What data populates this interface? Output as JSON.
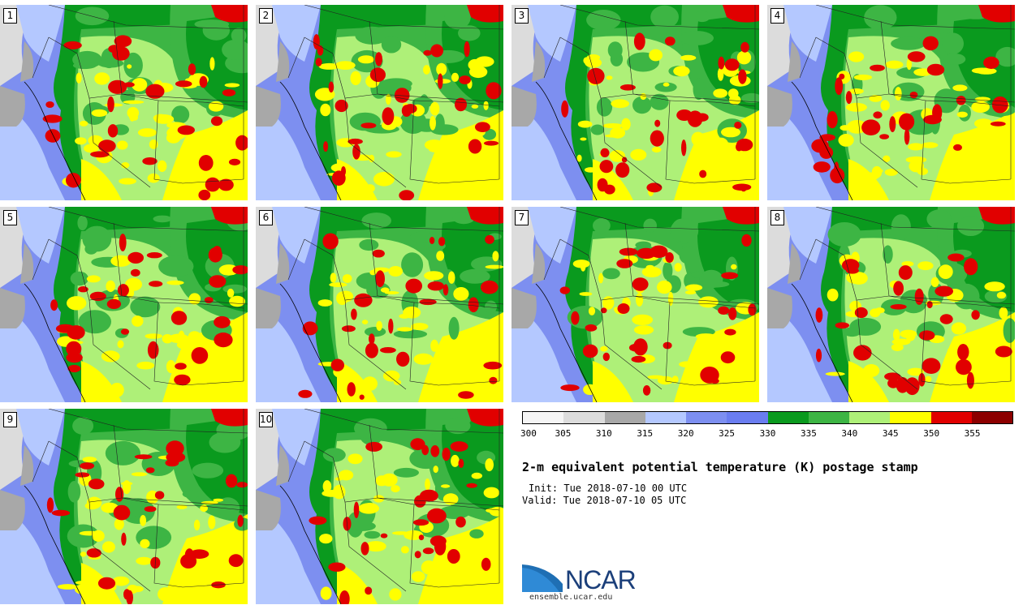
{
  "panels": [
    {
      "label": "1"
    },
    {
      "label": "2"
    },
    {
      "label": "3"
    },
    {
      "label": "4"
    },
    {
      "label": "5"
    },
    {
      "label": "6"
    },
    {
      "label": "7"
    },
    {
      "label": "8"
    },
    {
      "label": "9"
    },
    {
      "label": "10"
    }
  ],
  "colorbar": {
    "colors": [
      "#f5f5f5",
      "#dcdcdc",
      "#a8a8a8",
      "#b4c8ff",
      "#7d8ff0",
      "#6a7df0",
      "#0a9a1e",
      "#3db544",
      "#aef078",
      "#ffff00",
      "#e10000",
      "#8c0000"
    ],
    "ticks": [
      "300",
      "305",
      "310",
      "315",
      "320",
      "325",
      "330",
      "335",
      "340",
      "345",
      "350",
      "355"
    ]
  },
  "title": "2-m equivalent potential temperature (K) postage stamp",
  "init": "Init: Tue 2018-07-10 00 UTC",
  "valid": "Valid: Tue 2018-07-10 05 UTC",
  "logo": {
    "name": "NCAR",
    "url": "ensemble.ucar.edu"
  }
}
